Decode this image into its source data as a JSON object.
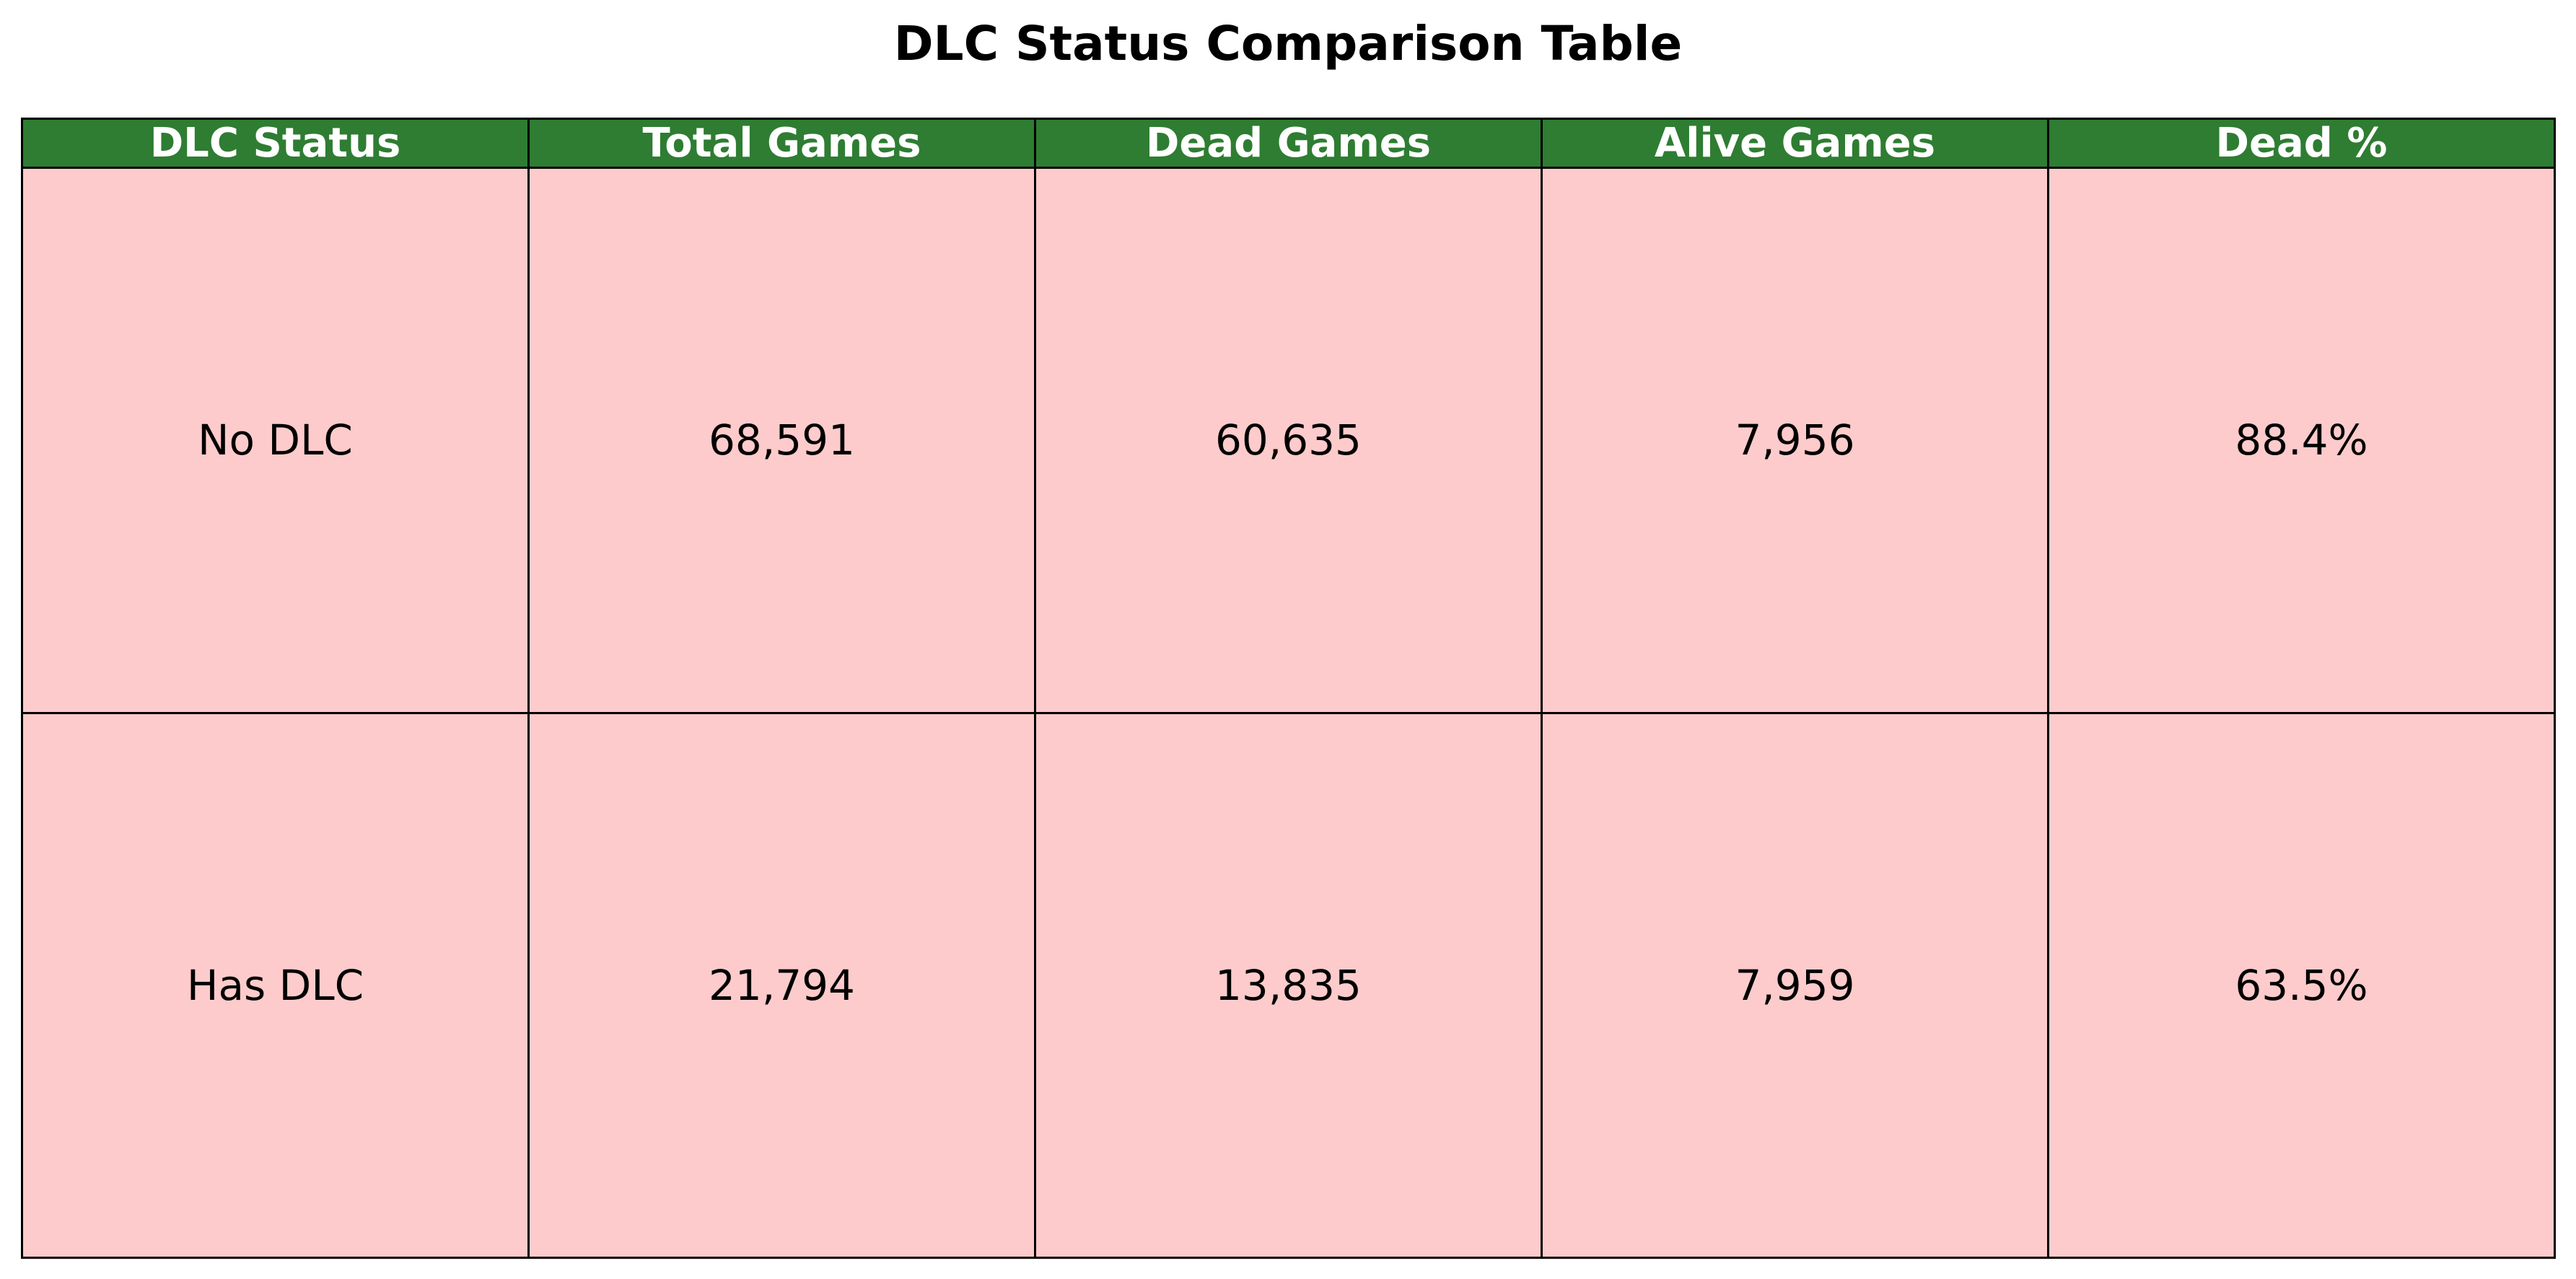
{
  "chart_data": {
    "type": "table",
    "title": "DLC Status Comparison Table",
    "columns": [
      "DLC Status",
      "Total Games",
      "Dead Games",
      "Alive Games",
      "Dead %"
    ],
    "rows": [
      [
        "No DLC",
        "68,591",
        "60,635",
        "7,956",
        "88.4%"
      ],
      [
        "Has DLC",
        "21,794",
        "13,835",
        "7,959",
        "63.5%"
      ]
    ],
    "colors": {
      "header_bg": "#2e7d32",
      "header_text": "#ffffff",
      "cell_bg": "#fdcbcb",
      "border": "#000000"
    }
  }
}
